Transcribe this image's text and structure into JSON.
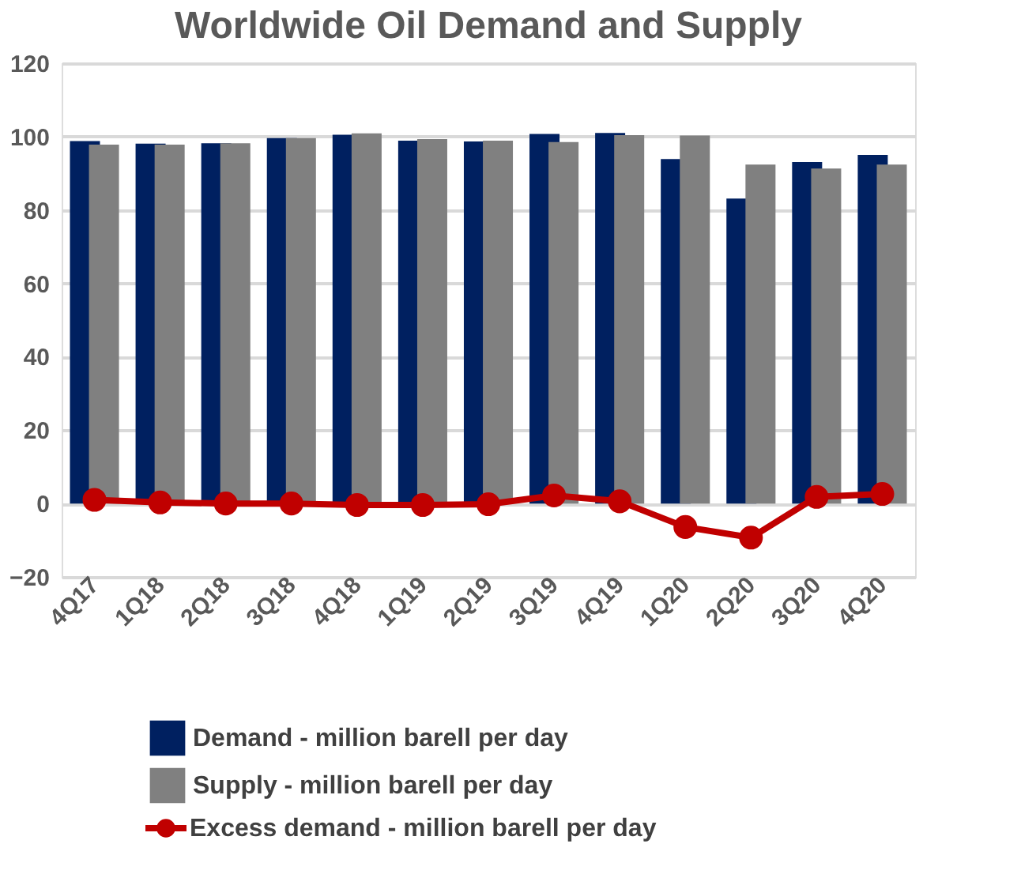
{
  "chart_data": {
    "type": "bar",
    "title": "Worldwide Oil Demand and Supply",
    "categories": [
      "4Q17",
      "1Q18",
      "2Q18",
      "3Q18",
      "4Q18",
      "1Q19",
      "2Q19",
      "3Q19",
      "4Q19",
      "1Q20",
      "2Q20",
      "3Q20",
      "4Q20"
    ],
    "series": [
      {
        "name": "Demand - million barell per day",
        "color": "#002060",
        "values": [
          98.8,
          98.1,
          98.2,
          99.6,
          100.5,
          98.9,
          98.7,
          100.7,
          101.0,
          93.9,
          83.1,
          93.1,
          95.0
        ]
      },
      {
        "name": "Supply - million barell per day",
        "color": "#808080",
        "values": [
          97.8,
          97.8,
          98.2,
          99.6,
          100.9,
          99.3,
          98.9,
          98.5,
          100.4,
          100.3,
          92.4,
          91.3,
          92.4
        ]
      },
      {
        "name": "Excess demand - million barell per day",
        "color": "#c00000",
        "type": "line",
        "marker": "circle",
        "values": [
          1.0,
          0.3,
          0.0,
          0.0,
          -0.4,
          -0.4,
          -0.2,
          2.2,
          0.6,
          -6.4,
          -9.3,
          1.8,
          2.6
        ]
      }
    ],
    "ylim": [
      -20,
      120
    ],
    "yticks": [
      -20,
      0,
      20,
      40,
      60,
      80,
      100,
      120
    ],
    "grid": "y",
    "legend": "bottom"
  }
}
